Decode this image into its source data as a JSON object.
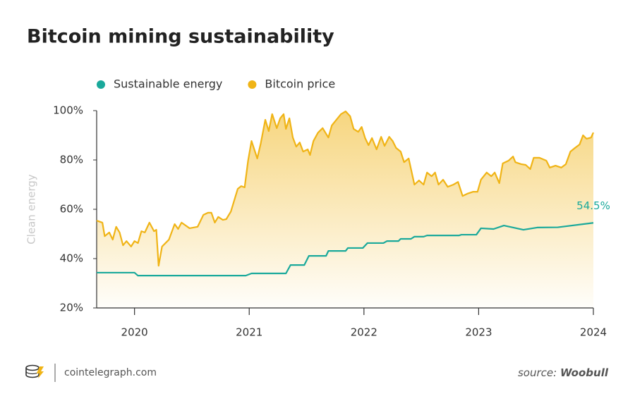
{
  "chart_data": {
    "type": "line",
    "title": "Bitcoin mining sustainability",
    "y_label": "Clean energy",
    "xlim": [
      2019.67,
      2024
    ],
    "xticks": [
      2020,
      2021,
      2022,
      2023,
      2024
    ],
    "ylim": [
      20,
      100
    ],
    "yticks": [
      {
        "value": 20,
        "label": "20%"
      },
      {
        "value": 40,
        "label": "40%"
      },
      {
        "value": 60,
        "label": "60%"
      },
      {
        "value": 80,
        "label": "80%"
      },
      {
        "value": 100,
        "label": "100%"
      }
    ],
    "grid": false,
    "series": [
      {
        "name": "Sustainable energy",
        "color": "#1aa99b",
        "area": false,
        "x": [
          2019.67,
          2020.0,
          2020.03,
          2020.97,
          2021.02,
          2021.32,
          2021.36,
          2021.48,
          2021.52,
          2021.67,
          2021.69,
          2021.84,
          2021.86,
          2021.99,
          2022.03,
          2022.17,
          2022.2,
          2022.3,
          2022.32,
          2022.41,
          2022.44,
          2022.52,
          2022.55,
          2022.83,
          2022.85,
          2022.98,
          2023.02,
          2023.13,
          2023.22,
          2023.39,
          2023.51,
          2023.69,
          2024.0
        ],
        "values": [
          34.3,
          34.3,
          33.1,
          33.1,
          34.0,
          34.0,
          37.4,
          37.4,
          41.1,
          41.1,
          43.1,
          43.1,
          44.3,
          44.3,
          46.3,
          46.3,
          47.1,
          47.1,
          48.0,
          48.0,
          48.9,
          48.9,
          49.4,
          49.4,
          49.7,
          49.7,
          52.3,
          52.0,
          53.4,
          51.7,
          52.6,
          52.7,
          54.5
        ],
        "value_labels": [
          null,
          null,
          null,
          null,
          null,
          null,
          null,
          null,
          null,
          null,
          null,
          null,
          null,
          null,
          null,
          null,
          null,
          null,
          null,
          null,
          null,
          null,
          null,
          null,
          null,
          null,
          null,
          null,
          null,
          null,
          null,
          null,
          "54.5%"
        ]
      },
      {
        "name": "Bitcoin price",
        "color": "#f0b416",
        "area": true,
        "x": [
          2019.67,
          2019.72,
          2019.74,
          2019.78,
          2019.81,
          2019.84,
          2019.87,
          2019.9,
          2019.93,
          2019.97,
          2020.0,
          2020.03,
          2020.06,
          2020.09,
          2020.13,
          2020.17,
          2020.19,
          2020.21,
          2020.24,
          2020.27,
          2020.3,
          2020.35,
          2020.38,
          2020.41,
          2020.48,
          2020.55,
          2020.6,
          2020.64,
          2020.67,
          2020.7,
          2020.73,
          2020.77,
          2020.8,
          2020.84,
          2020.9,
          2020.93,
          2020.96,
          2020.99,
          2021.02,
          2021.07,
          2021.1,
          2021.14,
          2021.17,
          2021.2,
          2021.24,
          2021.27,
          2021.3,
          2021.32,
          2021.35,
          2021.38,
          2021.41,
          2021.44,
          2021.47,
          2021.51,
          2021.53,
          2021.56,
          2021.6,
          2021.64,
          2021.69,
          2021.72,
          2021.76,
          2021.8,
          2021.84,
          2021.88,
          2021.91,
          2021.95,
          2021.98,
          2022.01,
          2022.04,
          2022.07,
          2022.11,
          2022.15,
          2022.18,
          2022.22,
          2022.25,
          2022.28,
          2022.32,
          2022.35,
          2022.39,
          2022.44,
          2022.48,
          2022.52,
          2022.55,
          2022.59,
          2022.62,
          2022.65,
          2022.69,
          2022.73,
          2022.78,
          2022.82,
          2022.86,
          2022.9,
          2022.95,
          2022.99,
          2023.02,
          2023.07,
          2023.11,
          2023.14,
          2023.18,
          2023.21,
          2023.26,
          2023.3,
          2023.32,
          2023.37,
          2023.41,
          2023.45,
          2023.48,
          2023.53,
          2023.59,
          2023.62,
          2023.67,
          2023.72,
          2023.76,
          2023.8,
          2023.84,
          2023.88,
          2023.91,
          2023.94,
          2023.98,
          2024.0
        ],
        "values": [
          55.4,
          54.6,
          49.1,
          50.6,
          47.7,
          52.9,
          50.6,
          45.4,
          47.1,
          44.9,
          47.1,
          46.3,
          51.1,
          50.6,
          54.6,
          51.1,
          51.7,
          37.1,
          44.9,
          46.3,
          47.7,
          54.0,
          52.0,
          54.6,
          52.3,
          52.9,
          57.7,
          58.6,
          58.6,
          54.6,
          56.9,
          55.7,
          56.0,
          59.1,
          68.3,
          69.4,
          68.9,
          79.7,
          87.7,
          80.6,
          86.6,
          96.3,
          91.7,
          98.6,
          92.9,
          96.9,
          98.6,
          92.6,
          96.9,
          89.1,
          85.4,
          87.1,
          83.4,
          84.3,
          82.0,
          87.7,
          91.1,
          92.9,
          89.1,
          94.0,
          96.3,
          98.6,
          99.7,
          97.7,
          92.6,
          91.4,
          93.4,
          88.9,
          86.0,
          88.9,
          84.3,
          89.4,
          85.7,
          89.4,
          87.7,
          84.9,
          83.4,
          79.1,
          80.6,
          70.0,
          71.7,
          70.0,
          74.9,
          73.4,
          74.9,
          70.0,
          72.0,
          69.1,
          70.0,
          71.1,
          65.4,
          66.3,
          67.1,
          67.1,
          72.0,
          74.9,
          73.4,
          74.9,
          70.6,
          78.6,
          79.7,
          81.4,
          79.1,
          78.3,
          78.0,
          76.3,
          80.9,
          80.9,
          79.7,
          76.9,
          77.7,
          76.9,
          78.3,
          83.4,
          84.9,
          86.3,
          90.0,
          88.6,
          89.1,
          91.1
        ]
      }
    ]
  },
  "footer": {
    "site": "cointelegraph.com",
    "source_prefix": "source:",
    "source_name": "Woobull"
  }
}
